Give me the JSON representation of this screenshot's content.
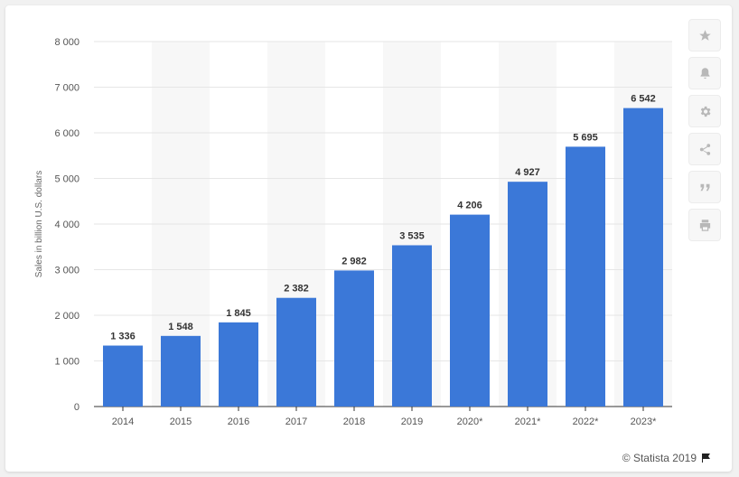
{
  "chart_data": {
    "type": "bar",
    "categories": [
      "2014",
      "2015",
      "2016",
      "2017",
      "2018",
      "2019",
      "2020*",
      "2021*",
      "2022*",
      "2023*"
    ],
    "values": [
      1336,
      1548,
      1845,
      2382,
      2982,
      3535,
      4206,
      4927,
      5695,
      6542
    ],
    "value_labels": [
      "1 336",
      "1 548",
      "1 845",
      "2 382",
      "2 982",
      "3 535",
      "4 206",
      "4 927",
      "5 695",
      "6 542"
    ],
    "ylabel": "Sales in billion U.S. dollars",
    "xlabel": "",
    "ylim": [
      0,
      8000
    ],
    "yticks": [
      0,
      1000,
      2000,
      3000,
      4000,
      5000,
      6000,
      7000,
      8000
    ],
    "ytick_labels": [
      "0",
      "1 000",
      "2 000",
      "3 000",
      "4 000",
      "5 000",
      "6 000",
      "7 000",
      "8 000"
    ],
    "grid": true,
    "bar_color": "#3b78d8"
  },
  "toolbar": {
    "icons": [
      "star-icon",
      "bell-icon",
      "gear-icon",
      "share-icon",
      "quote-icon",
      "print-icon"
    ]
  },
  "footer": {
    "credit": "© Statista 2019"
  }
}
